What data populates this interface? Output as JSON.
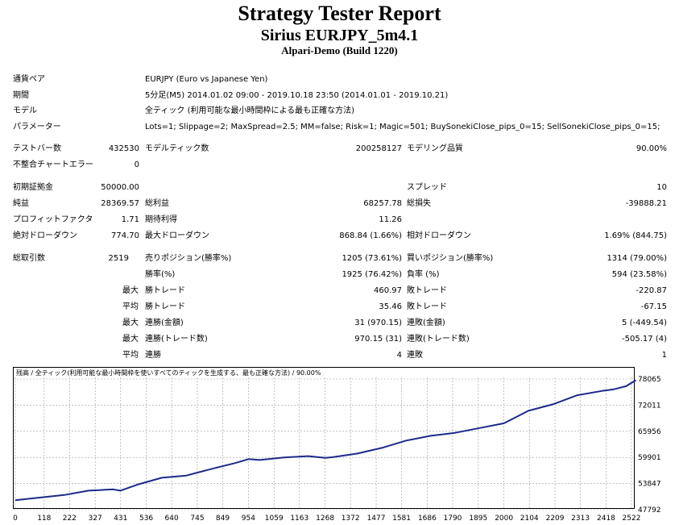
{
  "header": {
    "title": "Strategy Tester Report",
    "subtitle": "Sirius EURJPY_5m4.1",
    "server": "Alpari-Demo (Build 1220)"
  },
  "info": {
    "pair_label": "通貨ペア",
    "pair_value": "EURJPY (Euro vs Japanese Yen)",
    "period_label": "期間",
    "period_value": "5分足(M5) 2014.01.02 09:00 - 2019.10.18 23:50 (2014.01.01 - 2019.10.21)",
    "model_label": "モデル",
    "model_value": "全ティック (利用可能な最小時間枠による最も正確な方法)",
    "params_label": "パラメーター",
    "params_value": "Lots=1; Slippage=2; MaxSpread=2.5; MM=false; Risk=1; Magic=501; BuySonekiClose_pips_0=15; SellSonekiClose_pips_0=15;"
  },
  "stats": {
    "bars_label": "テストバー数",
    "bars_value": "432530",
    "ticks_label": "モデルティック数",
    "ticks_value": "200258127",
    "quality_label": "モデリング品質",
    "quality_value": "90.00%",
    "mismatch_label": "不整合チャートエラー",
    "mismatch_value": "0",
    "deposit_label": "初期証拠金",
    "deposit_value": "50000.00",
    "spread_label": "スプレッド",
    "spread_value": "10",
    "netprofit_label": "純益",
    "netprofit_value": "28369.57",
    "grossprofit_label": "総利益",
    "grossprofit_value": "68257.78",
    "grossloss_label": "総損失",
    "grossloss_value": "-39888.21",
    "pf_label": "プロフィットファクタ",
    "pf_value": "1.71",
    "expected_label": "期待利得",
    "expected_value": "11.26",
    "absdd_label": "絶対ドローダウン",
    "absdd_value": "774.70",
    "maxdd_label": "最大ドローダウン",
    "maxdd_value": "868.84 (1.66%)",
    "reldd_label": "相対ドローダウン",
    "reldd_value": "1.69% (844.75)",
    "trades_label": "総取引数",
    "trades_value": "2519",
    "short_label": "売りポジション(勝率%)",
    "short_value": "1205 (73.61%)",
    "long_label": "買いポジション(勝率%)",
    "long_value": "1314 (79.00%)",
    "winrate_label": "勝率(%)",
    "winrate_value": "1925 (76.42%)",
    "lossrate_label": "負率 (%)",
    "lossrate_value": "594 (23.58%)",
    "max_prefix": "最大",
    "avg_prefix": "平均",
    "maxwin_label": "勝トレード",
    "maxwin_value": "460.97",
    "maxloss_label": "敗トレード",
    "maxloss_value": "-220.87",
    "avgwin_label": "勝トレード",
    "avgwin_value": "35.46",
    "avgloss_label": "敗トレード",
    "avgloss_value": "-67.15",
    "conswin_money_label": "連勝(金額)",
    "conswin_money_value": "31 (970.15)",
    "consloss_money_label": "連敗(金額)",
    "consloss_money_value": "5 (-449.54)",
    "conswin_count_label": "連勝(トレード数)",
    "conswin_count_value": "970.15 (31)",
    "consloss_count_label": "連敗(トレード数)",
    "consloss_count_value": "-505.17 (4)",
    "avgconswin_label": "連勝",
    "avgconswin_value": "4",
    "avgconsloss_label": "連敗",
    "avgconsloss_value": "1"
  },
  "chart_caption": "残高 / 全ティック(利用可能な最小時間枠を使いすべてのティックを生成する、最も正確な方法) / 90.00%",
  "chart_data": {
    "type": "line",
    "line_color": "#1c2a8a",
    "x_ticks": [
      0,
      118,
      222,
      327,
      431,
      536,
      640,
      745,
      849,
      954,
      1059,
      1163,
      1268,
      1372,
      1477,
      1581,
      1686,
      1790,
      1895,
      2000,
      2104,
      2209,
      2313,
      2418,
      2522
    ],
    "y_ticks": [
      47792,
      53847,
      59901,
      65956,
      72011,
      78065
    ],
    "xlim": [
      0,
      2522
    ],
    "ylim": [
      47792,
      78065
    ],
    "x": [
      0,
      100,
      200,
      300,
      400,
      430,
      500,
      600,
      700,
      800,
      900,
      954,
      1000,
      1100,
      1200,
      1268,
      1300,
      1400,
      1500,
      1600,
      1700,
      1800,
      1900,
      2000,
      2100,
      2200,
      2300,
      2400,
      2450,
      2500,
      2540
    ],
    "y": [
      50000,
      50600,
      51200,
      52200,
      52500,
      52200,
      53600,
      55200,
      55700,
      57200,
      58600,
      59500,
      59300,
      59900,
      60200,
      59800,
      59950,
      60800,
      62100,
      63800,
      64900,
      65600,
      66700,
      67800,
      70700,
      72200,
      74300,
      75300,
      75700,
      76400,
      77800
    ]
  }
}
